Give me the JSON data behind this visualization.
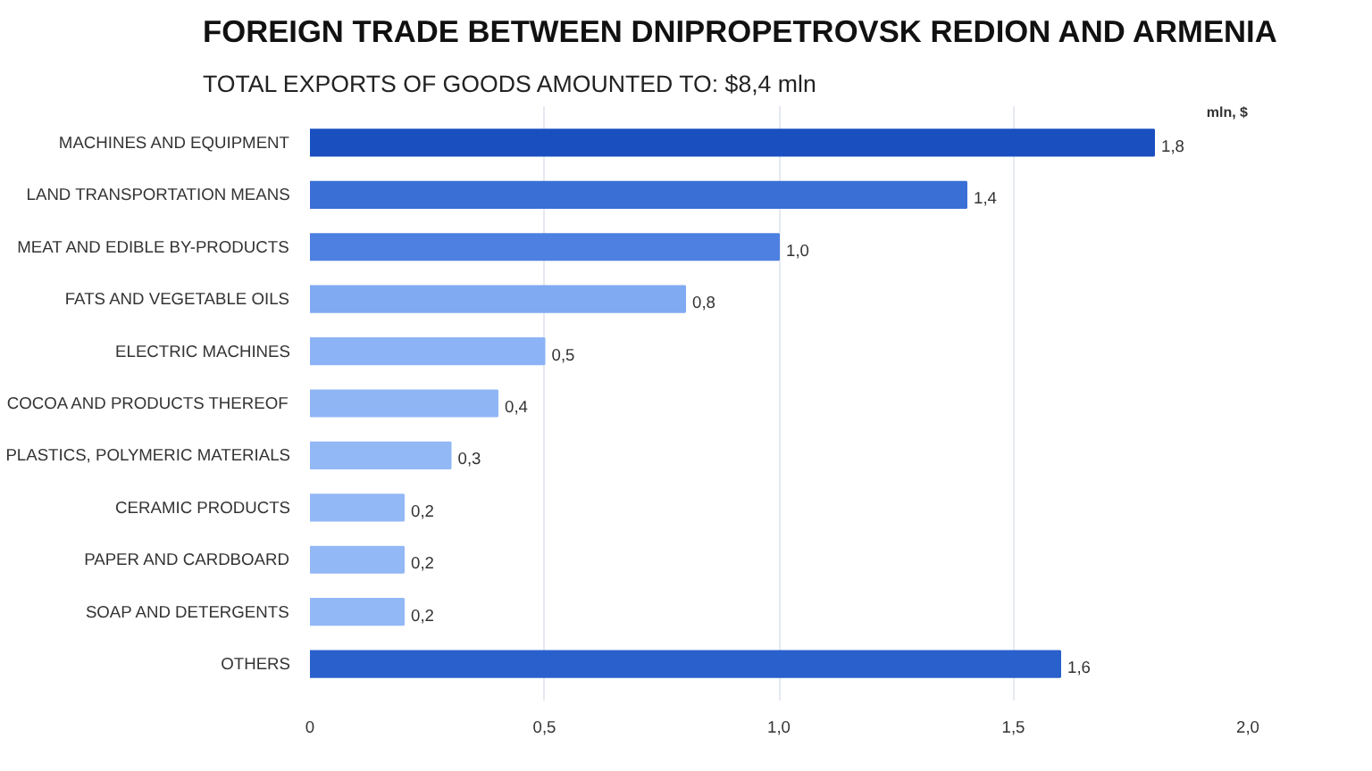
{
  "chart_data": {
    "type": "bar",
    "orientation": "horizontal",
    "title": "FOREIGN TRADE BETWEEN DNIPROPETROVSK REDION AND ARMENIA",
    "subtitle": "TOTAL EXPORTS OF GOODS AMOUNTED TO: $8,4 mln",
    "xlabel": "mln, $",
    "categories": [
      "MACHINES AND EQUIPMENT",
      "LAND TRANSPORTATION MEANS",
      "MEAT AND EDIBLE BY-PRODUCTS",
      "FATS AND VEGETABLE OILS",
      "ELECTRIC MACHINES",
      "COCOA AND PRODUCTS THEREOF",
      "PLASTICS, POLYMERIC MATERIALS",
      "CERAMIC PRODUCTS",
      "PAPER AND CARDBOARD",
      "SOAP AND DETERGENTS",
      "OTHERS"
    ],
    "values": [
      1.8,
      1.4,
      1.0,
      0.8,
      0.5,
      0.4,
      0.3,
      0.2,
      0.2,
      0.2,
      1.6
    ],
    "value_labels": [
      "1,8",
      "1,4",
      "1,0",
      "0,8",
      "0,5",
      "0,4",
      "0,3",
      "0,2",
      "0,2",
      "0,2",
      "1,6"
    ],
    "colors": [
      "#1a4fc0",
      "#3a6fd6",
      "#4d80e0",
      "#80aaf2",
      "#8cb3f5",
      "#8fb5f5",
      "#92b8f6",
      "#92b8f6",
      "#92b8f6",
      "#92b8f6",
      "#2a60cc"
    ],
    "xlim": [
      0,
      2.0
    ],
    "xticks": [
      0,
      {
        "value": 0.5,
        "label": "0,5"
      },
      {
        "value": 1.0,
        "label": "1,0"
      },
      {
        "value": 1.5,
        "label": "1,5"
      },
      {
        "value": 2.0,
        "label": "2,0"
      }
    ],
    "grid": "x"
  }
}
